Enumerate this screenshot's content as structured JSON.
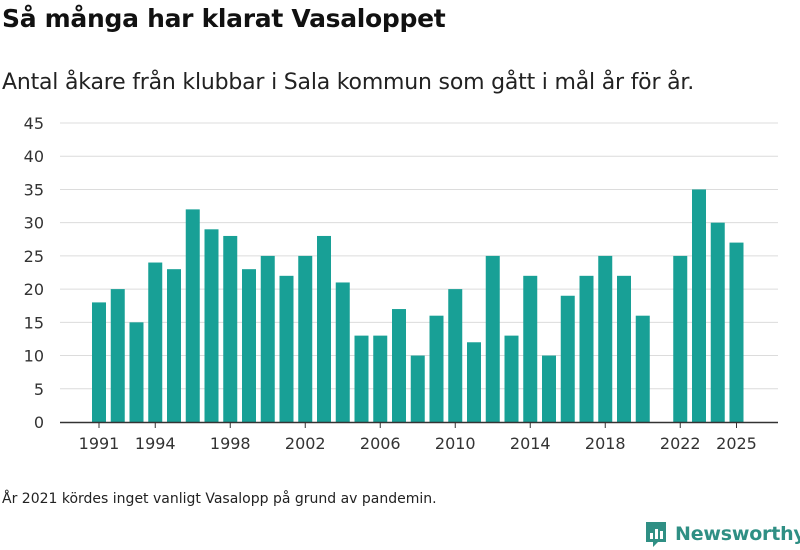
{
  "title": "Så många har klarat Vasaloppet",
  "subtitle": "Antal åkare från klubbar i Sala kommun som gått i mål år för år.",
  "footnote": "År 2021 kördes inget vanligt Vasalopp på grund av pandemin.",
  "brand": {
    "name": "Newsworthy",
    "logo": "newsworthy-logo",
    "color": "#2f8f84"
  },
  "chart_data": {
    "type": "bar",
    "categories": [
      1991,
      1992,
      1993,
      1994,
      1995,
      1996,
      1997,
      1998,
      1999,
      2000,
      2001,
      2002,
      2003,
      2004,
      2005,
      2006,
      2007,
      2008,
      2009,
      2010,
      2011,
      2012,
      2013,
      2014,
      2015,
      2016,
      2017,
      2018,
      2019,
      2020,
      2021,
      2022,
      2023,
      2024,
      2025
    ],
    "values": [
      18,
      20,
      15,
      24,
      23,
      32,
      29,
      28,
      23,
      25,
      22,
      25,
      28,
      21,
      13,
      13,
      17,
      10,
      16,
      20,
      12,
      25,
      13,
      22,
      10,
      19,
      22,
      25,
      22,
      16,
      null,
      25,
      35,
      30,
      27
    ],
    "ylim": [
      0,
      45
    ],
    "yticks": [
      0,
      5,
      10,
      15,
      20,
      25,
      30,
      35,
      40,
      45
    ],
    "xticks": [
      1991,
      1994,
      1998,
      2002,
      2006,
      2010,
      2014,
      2018,
      2022,
      2025
    ],
    "bar_color": "#18a096",
    "grid": true,
    "legend": "none"
  }
}
